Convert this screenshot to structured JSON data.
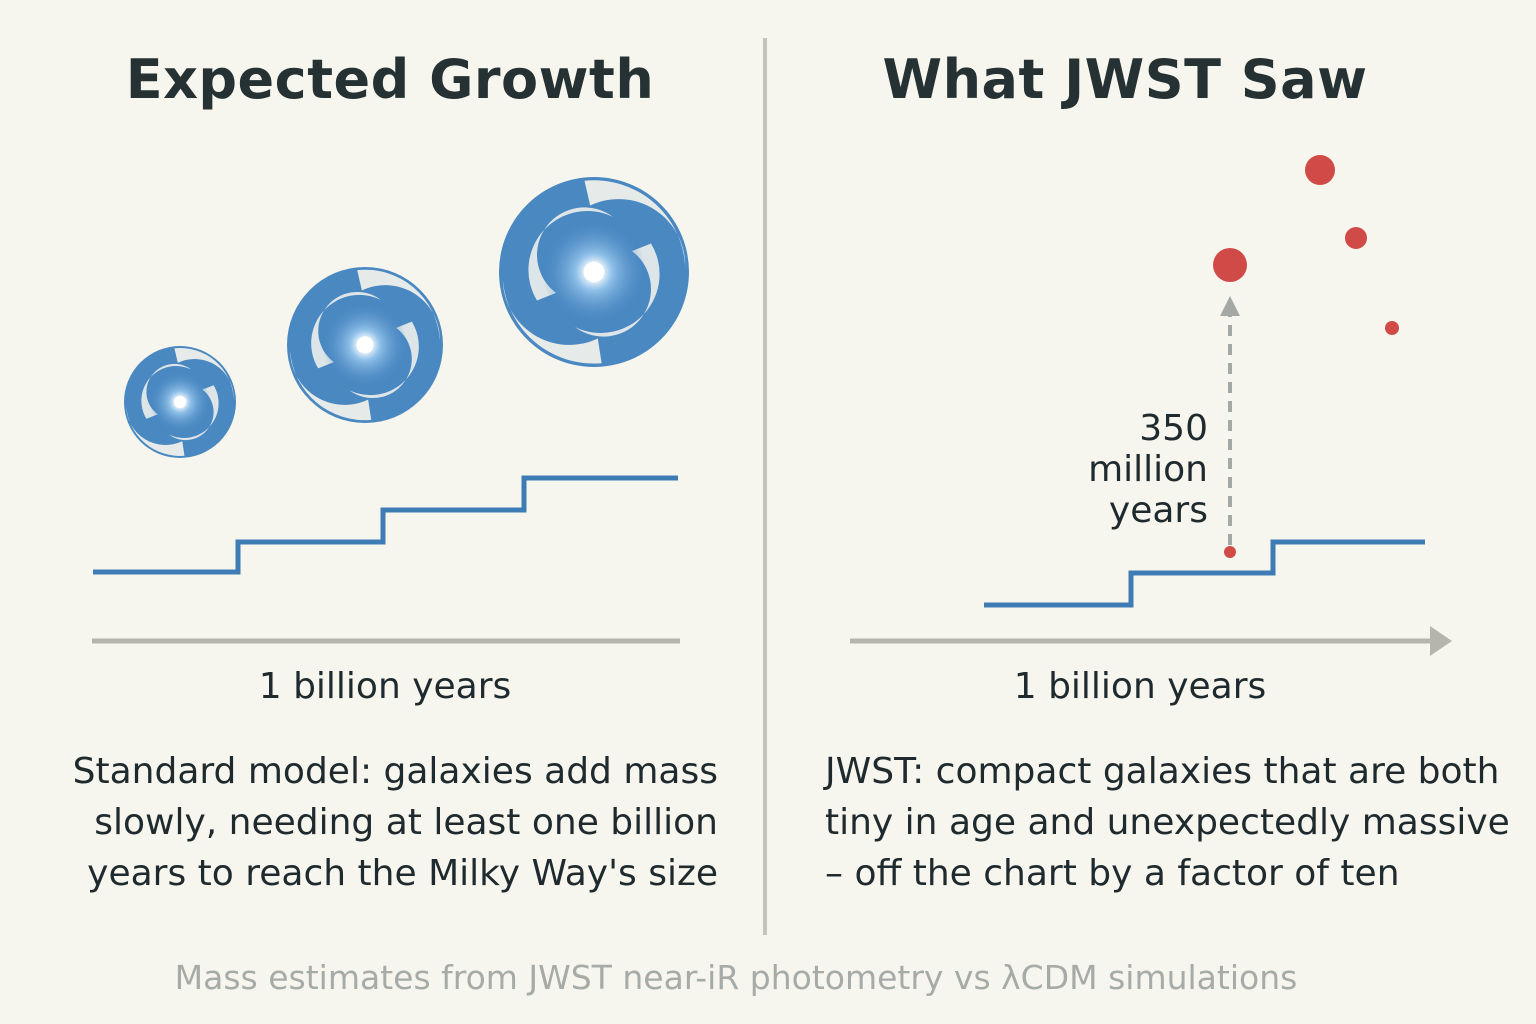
{
  "left_panel": {
    "title": "Expected Growth",
    "axis_label": "1 billion years",
    "caption": "Standard model: galaxies add mass slowly, needing at least one billion years to reach the Milky Way's size"
  },
  "right_panel": {
    "title": "What JWST Saw",
    "axis_label": "1 billion years",
    "arrow_label": "350 million years",
    "caption": "JWST: compact galaxies that are both tiny in age and unexpectedly massive – off the chart by a factor of ten"
  },
  "footnote": "Mass estimates from JWST near-iR photometry vs λCDM simulations",
  "colors": {
    "background": "#f7f6ee",
    "galaxy_blue": "#4a88c2",
    "step_line": "#3e7cb5",
    "observed_point": "#d04a48",
    "axis_gray": "#b5b5ae",
    "divider": "#c4c4bd"
  },
  "icons": [
    "spiral-galaxy-icon",
    "spiral-galaxy-icon",
    "spiral-galaxy-icon",
    "dashed-arrow-icon",
    "time-axis-arrow-icon"
  ]
}
